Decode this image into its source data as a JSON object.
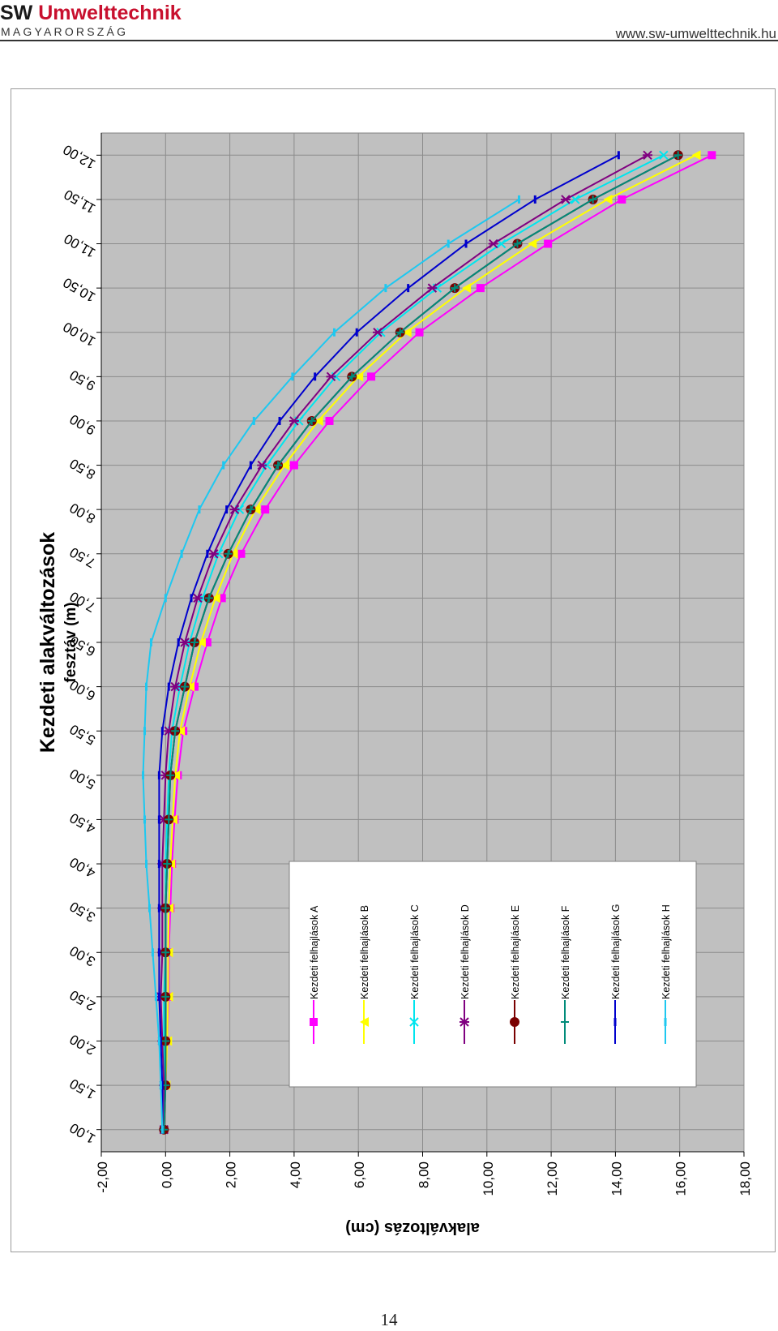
{
  "header": {
    "logo_sw": "SW",
    "logo_brand": "Umwelttechnik",
    "logo_country": "MAGYARORSZÁG",
    "url": "www.sw-umwelttechnik.hu"
  },
  "page_number": "14",
  "colors": {
    "plot_background": "#c0c0c0",
    "gridline": "#8c8c8c",
    "brand_red": "#c8102e"
  },
  "chart_data": {
    "type": "line",
    "orientation": "rotated-90",
    "title": "Kezdeti alakváltozások",
    "xlabel": "fesztáv (m)",
    "ylabel": "alakváltozás (cm)",
    "x": [
      1.0,
      1.5,
      2.0,
      2.5,
      3.0,
      3.5,
      4.0,
      4.5,
      5.0,
      5.5,
      6.0,
      6.5,
      7.0,
      7.5,
      8.0,
      8.5,
      9.0,
      9.5,
      10.0,
      10.5,
      11.0,
      11.5,
      12.0
    ],
    "x_ticks": [
      "1,00",
      "1,50",
      "2,00",
      "2,50",
      "3,00",
      "3,50",
      "4,00",
      "4,50",
      "5,00",
      "5,50",
      "6,00",
      "6,50",
      "7,00",
      "7,50",
      "8,00",
      "8,50",
      "9,00",
      "9,50",
      "10,00",
      "10,50",
      "11,00",
      "11,50",
      "12,00"
    ],
    "y_ticks": [
      "-2,00",
      "0,00",
      "2,00",
      "4,00",
      "6,00",
      "8,00",
      "10,00",
      "12,00",
      "14,00",
      "16,00",
      "18,00"
    ],
    "xlim": [
      0.75,
      12.25
    ],
    "ylim": [
      -2,
      18
    ],
    "grid": true,
    "legend_position": "inside, lower-left",
    "series": [
      {
        "name": "Kezdeti felhajlások A",
        "color": "#ff00ff",
        "marker": "square",
        "values": [
          null,
          0.0,
          0.05,
          0.1,
          0.1,
          0.15,
          0.2,
          0.28,
          0.38,
          0.55,
          0.9,
          1.3,
          1.75,
          2.35,
          3.1,
          4.0,
          5.1,
          6.4,
          7.9,
          9.8,
          11.9,
          14.2,
          17.0
        ]
      },
      {
        "name": "Kezdeti felhajlások B",
        "color": "#ffff00",
        "marker": "triangle",
        "values": [
          null,
          0.0,
          0.05,
          0.08,
          0.08,
          0.1,
          0.15,
          0.22,
          0.3,
          0.45,
          0.75,
          1.1,
          1.55,
          2.1,
          2.8,
          3.7,
          4.75,
          6.0,
          7.5,
          9.35,
          11.4,
          13.75,
          16.5
        ]
      },
      {
        "name": "Kezdeti felhajlások C",
        "color": "#00e5ee",
        "marker": "x",
        "values": [
          null,
          -0.05,
          -0.05,
          -0.05,
          0.0,
          0.0,
          0.0,
          0.05,
          0.1,
          0.2,
          0.45,
          0.75,
          1.15,
          1.65,
          2.3,
          3.15,
          4.15,
          5.3,
          6.7,
          8.45,
          10.45,
          12.75,
          15.5
        ]
      },
      {
        "name": "Kezdeti felhajlások D",
        "color": "#800080",
        "marker": "star",
        "values": [
          -0.05,
          -0.05,
          -0.1,
          -0.15,
          -0.1,
          -0.1,
          -0.1,
          -0.05,
          0.0,
          0.1,
          0.3,
          0.6,
          1.0,
          1.5,
          2.15,
          3.0,
          4.0,
          5.15,
          6.6,
          8.3,
          10.2,
          12.45,
          15.0
        ]
      },
      {
        "name": "Kezdeti felhajlások E",
        "color": "#7a0000",
        "marker": "circle",
        "values": [
          -0.05,
          0.0,
          0.0,
          0.0,
          0.0,
          0.0,
          0.05,
          0.1,
          0.15,
          0.3,
          0.6,
          0.9,
          1.35,
          1.95,
          2.65,
          3.5,
          4.55,
          5.8,
          7.3,
          9.0,
          10.95,
          13.3,
          15.95
        ]
      },
      {
        "name": "Kezdeti felhajlások F",
        "color": "#008b7a",
        "marker": "plus",
        "values": [
          -0.05,
          0.0,
          0.0,
          0.0,
          0.0,
          0.0,
          0.05,
          0.1,
          0.15,
          0.3,
          0.6,
          0.9,
          1.35,
          1.95,
          2.65,
          3.5,
          4.55,
          5.8,
          7.3,
          9.0,
          10.95,
          13.3,
          15.95
        ]
      },
      {
        "name": "Kezdeti felhajlások G",
        "color": "#0000cd",
        "marker": "dash",
        "values": [
          -0.1,
          -0.1,
          -0.15,
          -0.2,
          -0.2,
          -0.2,
          -0.2,
          -0.2,
          -0.2,
          -0.1,
          0.1,
          0.4,
          0.8,
          1.3,
          1.9,
          2.65,
          3.55,
          4.65,
          5.95,
          7.55,
          9.35,
          11.5,
          14.1
        ]
      },
      {
        "name": "Kezdeti felhajlások H",
        "color": "#1ec8f0",
        "marker": "dash",
        "values": [
          -0.1,
          -0.15,
          -0.2,
          -0.3,
          -0.4,
          -0.5,
          -0.6,
          -0.65,
          -0.7,
          -0.65,
          -0.6,
          -0.45,
          0.0,
          0.5,
          1.05,
          1.8,
          2.75,
          3.95,
          5.25,
          6.85,
          8.8,
          11.0,
          null
        ]
      }
    ]
  }
}
